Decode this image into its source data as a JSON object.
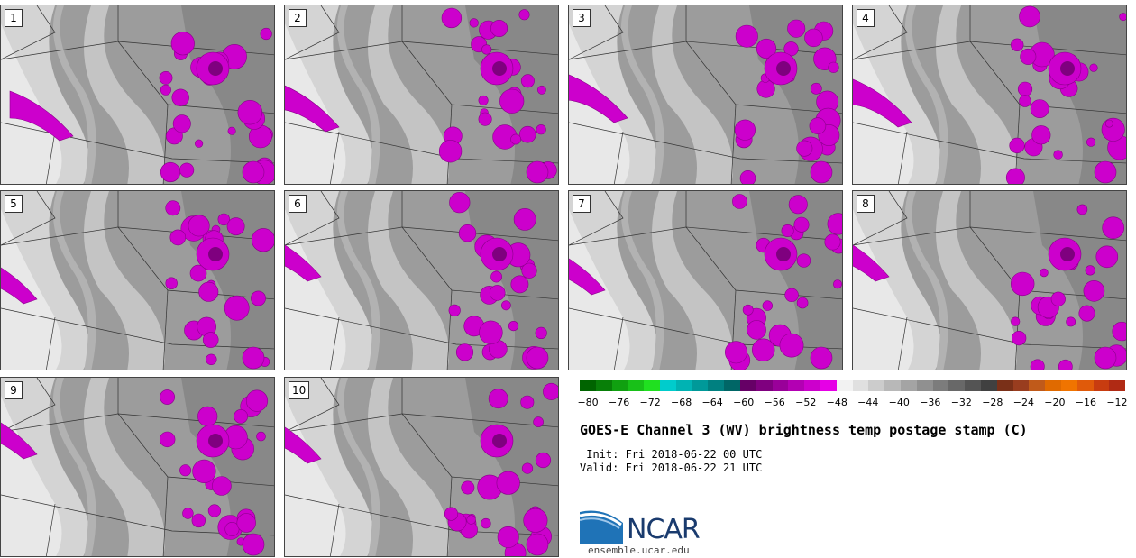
{
  "panels": [
    {
      "label": "1"
    },
    {
      "label": "2"
    },
    {
      "label": "3"
    },
    {
      "label": "4"
    },
    {
      "label": "5"
    },
    {
      "label": "6"
    },
    {
      "label": "7"
    },
    {
      "label": "8"
    },
    {
      "label": "9"
    },
    {
      "label": "10"
    }
  ],
  "colorbar": {
    "colors": [
      "#006400",
      "#087f08",
      "#10a010",
      "#18c018",
      "#20e020",
      "#00cccc",
      "#00b3b3",
      "#009999",
      "#008080",
      "#006666",
      "#660066",
      "#7f007f",
      "#990099",
      "#b300b3",
      "#cc00cc",
      "#e600e6",
      "#f2f2f2",
      "#e0e0e0",
      "#cccccc",
      "#b8b8b8",
      "#a4a4a4",
      "#909090",
      "#7c7c7c",
      "#686868",
      "#545454",
      "#404040",
      "#7a3018",
      "#993d1f",
      "#c05a1a",
      "#e06a00",
      "#f07400",
      "#e05a0a",
      "#c83c10",
      "#b02a14"
    ],
    "ticks": [
      "−80",
      "−76",
      "−72",
      "−68",
      "−64",
      "−60",
      "−56",
      "−52",
      "−48",
      "−44",
      "−40",
      "−36",
      "−32",
      "−28",
      "−24",
      "−20",
      "−16",
      "−12"
    ],
    "range": [
      -80,
      -12
    ]
  },
  "title": "GOES-E Channel 3 (WV) brightness temp postage stamp (C)",
  "init": " Init: Fri 2018-06-22 00 UTC",
  "valid": "Valid: Fri 2018-06-22 21 UTC",
  "logo_text": "NCAR",
  "url": "ensemble.ucar.edu"
}
